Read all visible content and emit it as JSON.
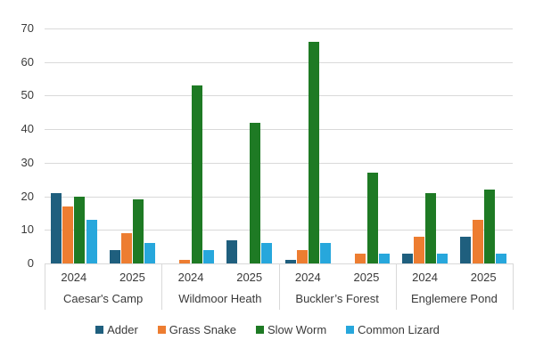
{
  "chart_data": {
    "type": "bar",
    "title": "",
    "y_axis": {
      "min": 0,
      "max": 70,
      "step": 10,
      "tick_labels": [
        "0",
        "10",
        "20",
        "30",
        "40",
        "50",
        "60",
        "70"
      ]
    },
    "grid": true,
    "legend_position": "bottom",
    "categories_note": "two-level x axis: year within site",
    "groups": [
      {
        "label": "Caesar's Camp",
        "years": [
          {
            "label": "2024",
            "values": [
              21,
              17,
              20,
              13
            ]
          },
          {
            "label": "2025",
            "values": [
              4,
              9,
              19,
              6
            ]
          }
        ]
      },
      {
        "label": "Wildmoor Heath",
        "years": [
          {
            "label": "2024",
            "values": [
              0,
              1,
              53,
              4
            ]
          },
          {
            "label": "2025",
            "values": [
              7,
              0,
              42,
              6
            ]
          }
        ]
      },
      {
        "label": "Buckler’s Forest",
        "years": [
          {
            "label": "2024",
            "values": [
              1,
              4,
              66,
              6
            ]
          },
          {
            "label": "2025",
            "values": [
              0,
              3,
              27,
              3
            ]
          }
        ]
      },
      {
        "label": "Englemere Pond",
        "years": [
          {
            "label": "2024",
            "values": [
              3,
              8,
              21,
              3
            ]
          },
          {
            "label": "2025",
            "values": [
              8,
              13,
              22,
              3
            ]
          }
        ]
      }
    ],
    "series": [
      {
        "name": "Adder",
        "color": "#1F5F7E"
      },
      {
        "name": "Grass Snake",
        "color": "#ED7D31"
      },
      {
        "name": "Slow Worm",
        "color": "#1E7A24"
      },
      {
        "name": "Common Lizard",
        "color": "#27A7DC"
      }
    ]
  },
  "colors": {
    "grid": "#D9D9D9",
    "text": "#3A3A3A",
    "background": "#FFFFFF"
  }
}
